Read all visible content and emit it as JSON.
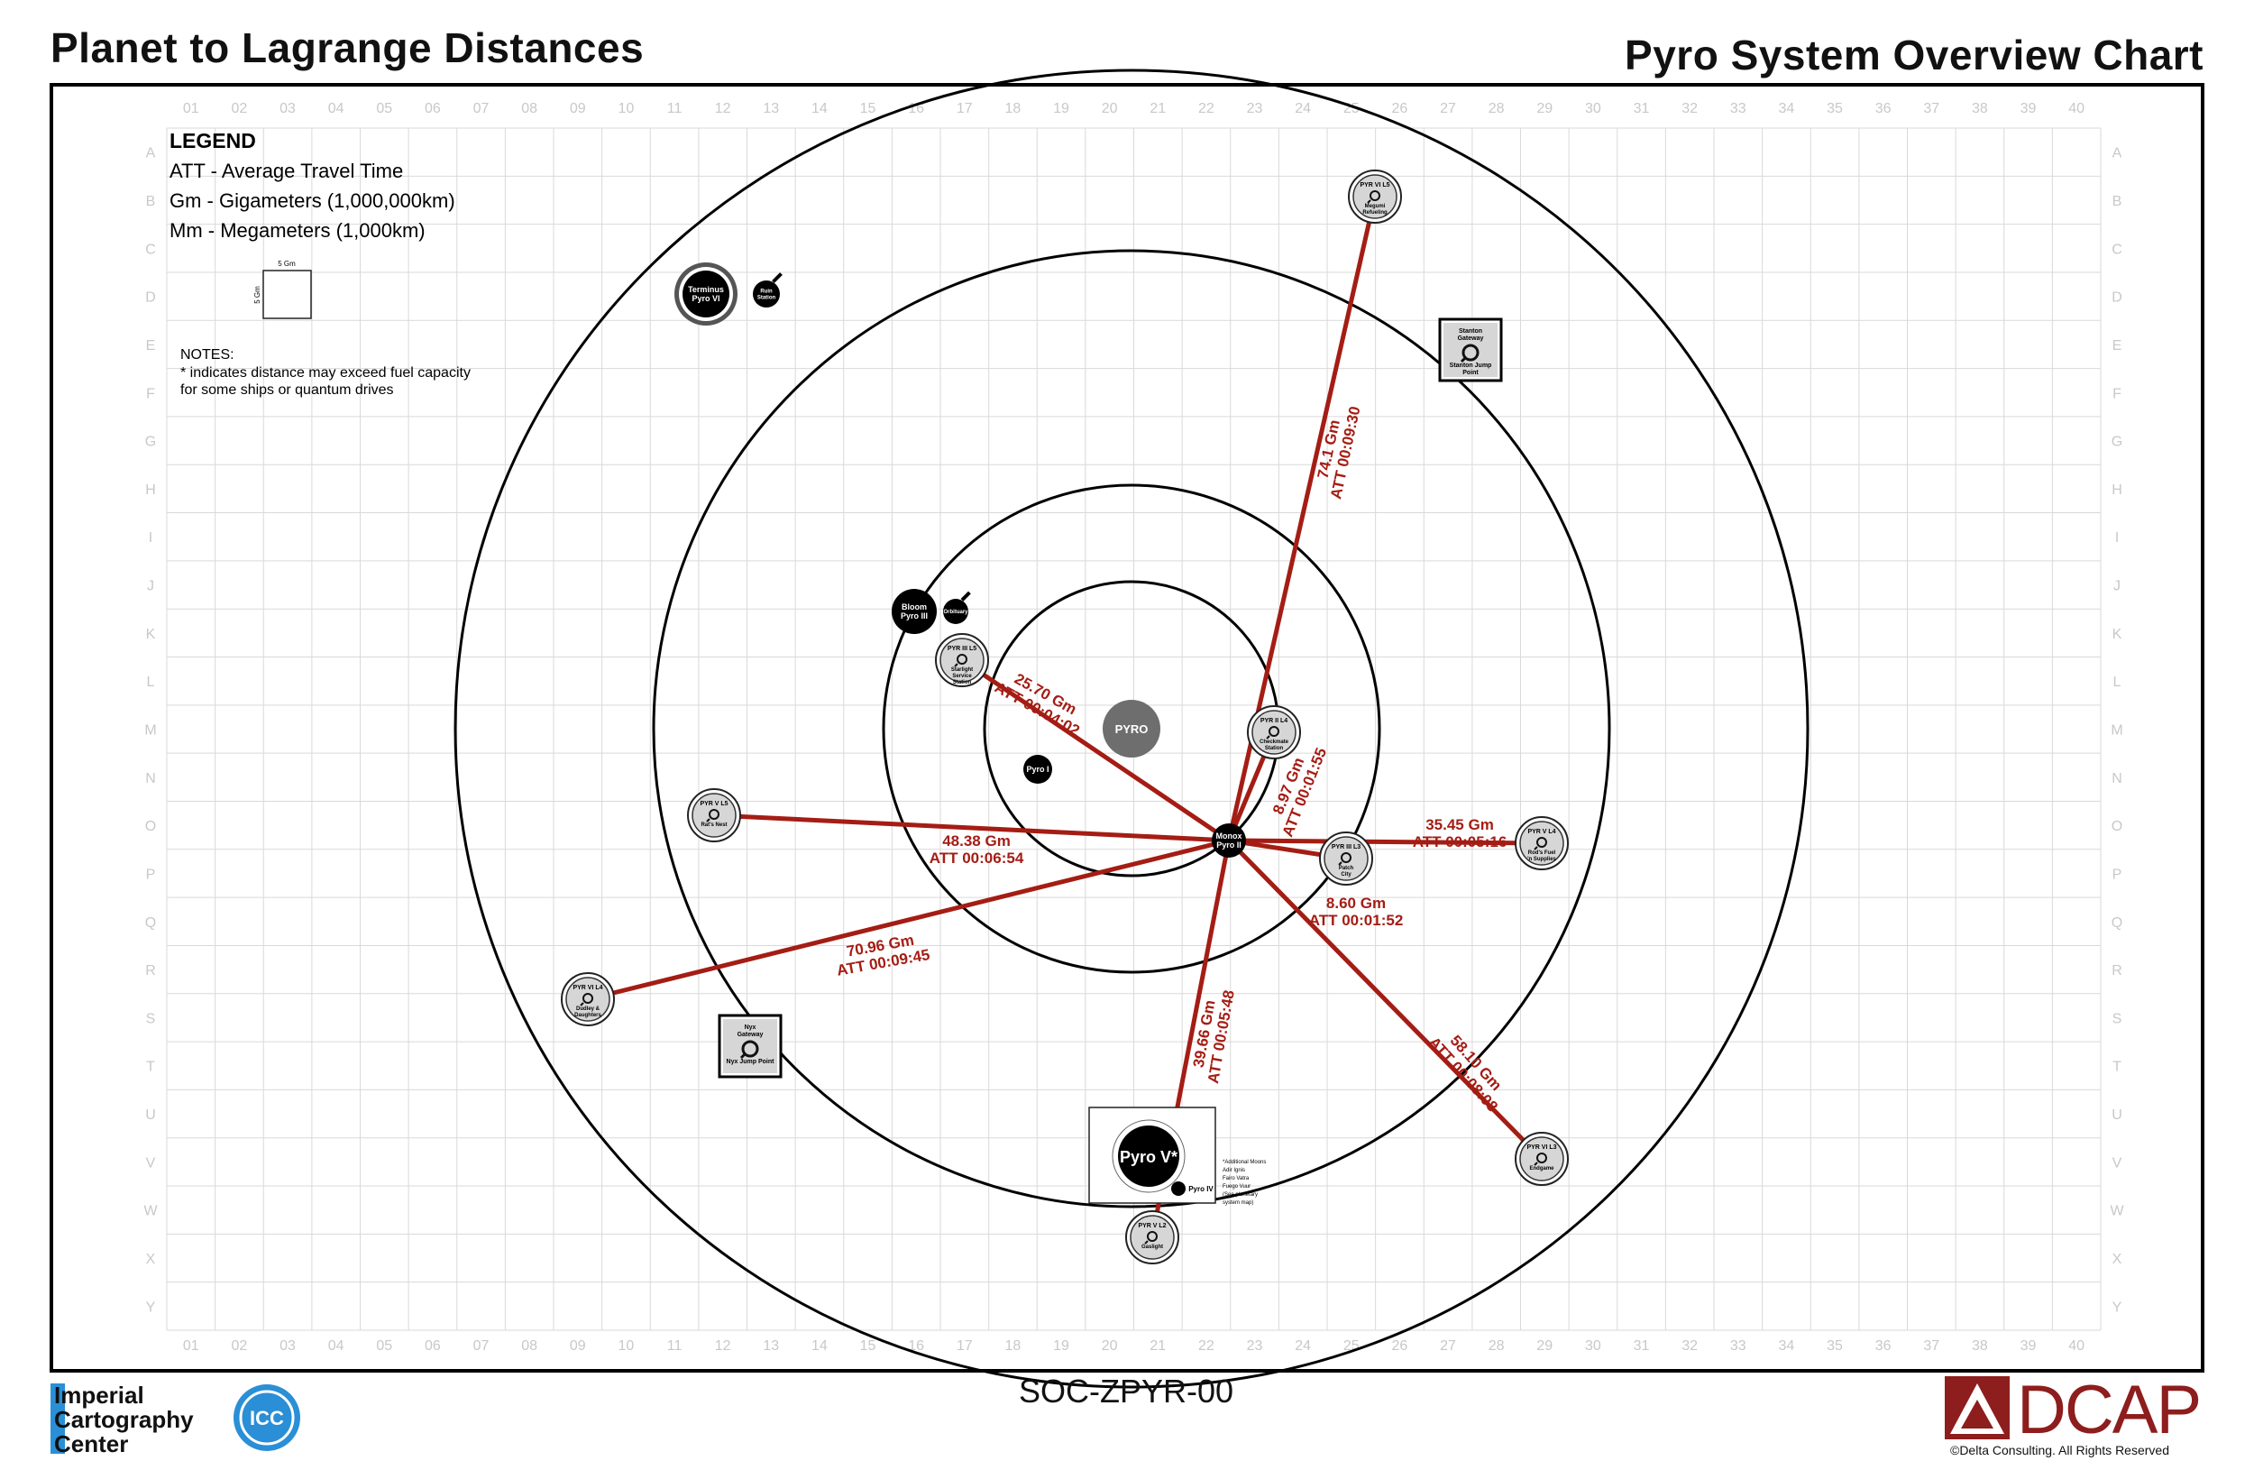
{
  "header": {
    "title_left": "Planet to Lagrange Distances",
    "title_right": "Pyro System Overview Chart"
  },
  "legend": {
    "heading": "LEGEND",
    "lines": [
      "ATT - Average Travel Time",
      "Gm - Gigameters (1,000,000km)",
      "Mm - Megameters (1,000km)"
    ],
    "scale_label_top": "5 Gm",
    "scale_label_side": "5 Gm"
  },
  "notes": {
    "heading": "NOTES:",
    "lines": [
      "* indicates distance may exceed fuel capacity",
      "for some ships or quantum drives"
    ]
  },
  "grid": {
    "columns": [
      "01",
      "02",
      "03",
      "04",
      "05",
      "06",
      "07",
      "08",
      "09",
      "10",
      "11",
      "12",
      "13",
      "14",
      "15",
      "16",
      "17",
      "18",
      "19",
      "20",
      "21",
      "22",
      "23",
      "24",
      "25",
      "26",
      "27",
      "28",
      "29",
      "30",
      "31",
      "32",
      "33",
      "34",
      "35",
      "36",
      "37",
      "38",
      "39",
      "40"
    ],
    "rows": [
      "A",
      "B",
      "C",
      "D",
      "E",
      "F",
      "G",
      "H",
      "I",
      "J",
      "K",
      "L",
      "M",
      "N",
      "O",
      "P",
      "Q",
      "R",
      "S",
      "T",
      "U",
      "V",
      "W",
      "X",
      "Y"
    ]
  },
  "star": {
    "label": "PYRO"
  },
  "planets": [
    {
      "id": "pyro1",
      "lines": [
        "Pyro I"
      ]
    },
    {
      "id": "monox",
      "lines": [
        "Monox",
        "Pyro II"
      ]
    },
    {
      "id": "bloom",
      "lines": [
        "Bloom",
        "Pyro III"
      ]
    },
    {
      "id": "pyro5",
      "lines": [
        "Pyro V*"
      ]
    },
    {
      "id": "terminus",
      "lines": [
        "Terminus",
        "Pyro VI"
      ]
    }
  ],
  "moons": [
    {
      "id": "orbituary",
      "lines": [
        "Orbituary"
      ]
    },
    {
      "id": "ruin",
      "lines": [
        "Ruin",
        "Station"
      ]
    },
    {
      "id": "pyro4",
      "lines": [
        "Pyro IV"
      ]
    }
  ],
  "pyro5_note": [
    "*Additional Moons",
    "Adir     Ignis",
    "Fairo    Vatra",
    "Fuego    Vuur",
    "(See planetary",
    "system map)"
  ],
  "lagrange": [
    {
      "id": "pyr6l5",
      "title": "PYR VI L5",
      "lines": [
        "Megumi",
        "Refueling"
      ]
    },
    {
      "id": "pyr3l5",
      "title": "PYR III L5",
      "lines": [
        "Starlight",
        "Service",
        "Station"
      ]
    },
    {
      "id": "pyr2l4",
      "title": "PYR II L4",
      "lines": [
        "Checkmate",
        "Station"
      ]
    },
    {
      "id": "pyr5l5",
      "title": "PYR V L5",
      "lines": [
        "Rat's Nest"
      ]
    },
    {
      "id": "pyr3l3",
      "title": "PYR III L3",
      "lines": [
        "Patch",
        "City"
      ]
    },
    {
      "id": "pyr5l4",
      "title": "PYR V L4",
      "lines": [
        "Rod's Fuel",
        "'n Supplies"
      ]
    },
    {
      "id": "pyr6l4",
      "title": "PYR VI L4",
      "lines": [
        "Dudley &",
        "Daughters"
      ]
    },
    {
      "id": "pyr6l3",
      "title": "PYR VI L3",
      "lines": [
        "Endgame"
      ]
    },
    {
      "id": "pyr5l2",
      "title": "PYR V L2",
      "lines": [
        "Gaslight"
      ]
    }
  ],
  "jump_points": [
    {
      "id": "stanton",
      "top": [
        "Stanton",
        "Gateway"
      ],
      "bottom": [
        "Stanton Jump",
        "Point"
      ]
    },
    {
      "id": "nyx",
      "top": [
        "Nyx",
        "Gateway"
      ],
      "bottom": [
        "Nyx Jump Point"
      ]
    }
  ],
  "routes": [
    {
      "to": "pyr6l5",
      "distance": "74.1 Gm",
      "att": "ATT 00:09:30"
    },
    {
      "to": "pyr3l5",
      "distance": "25.70 Gm",
      "att": "ATT 00:04:02"
    },
    {
      "to": "pyr2l4",
      "distance": "8.97 Gm",
      "att": "ATT 00:01:55"
    },
    {
      "to": "pyr5l4",
      "distance": "35.45 Gm",
      "att": "ATT 00:05:16"
    },
    {
      "to": "pyr5l5",
      "distance": "48.38 Gm",
      "att": "ATT 00:06:54"
    },
    {
      "to": "pyr3l3",
      "distance": "8.60 Gm",
      "att": "ATT 00:01:52"
    },
    {
      "to": "pyr6l4",
      "distance": "70.96 Gm",
      "att": "ATT 00:09:45"
    },
    {
      "to": "pyr5l2",
      "distance": "39.66 Gm",
      "att": "ATT 00:05:48"
    },
    {
      "to": "pyr6l3",
      "distance": "58.10 Gm",
      "att": "ATT 00:08:08"
    }
  ],
  "footer": {
    "code": "SOC-ZPYR-00",
    "icc_lines": [
      "Imperial",
      "Cartography",
      "Center"
    ],
    "icc_seal": "ICC",
    "dcap_word": "DCAP",
    "dcap_copy": "©Delta Consulting.  All Rights Reserved"
  },
  "colors": {
    "route": "#a41d14",
    "grid": "#d9d9d9",
    "grid_label": "#c8c8c8",
    "star": "#6e6e6e",
    "station_fill": "#d6d6d6",
    "icc_blue": "#2a8fd6",
    "dcap_red": "#8e1d1d"
  }
}
